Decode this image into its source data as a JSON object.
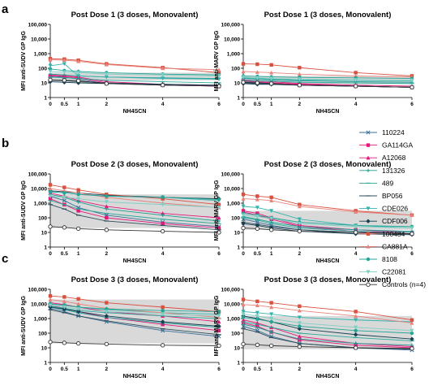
{
  "panel_labels": [
    "a",
    "b",
    "c"
  ],
  "legend": [
    {
      "name": "110224",
      "color": "#3a6f96",
      "marker": "x"
    },
    {
      "name": "GA114GA",
      "color": "#e3197a",
      "marker": "square"
    },
    {
      "name": "A12068",
      "color": "#e3197a",
      "marker": "triangle"
    },
    {
      "name": "131326",
      "color": "#1b9d93",
      "marker": "plus"
    },
    {
      "name": "489",
      "color": "#2aa89a",
      "marker": "dash"
    },
    {
      "name": "BP056",
      "color": "#2d4c5c",
      "marker": "dash"
    },
    {
      "name": "CDE026",
      "color": "#34b3ad",
      "marker": "triangle-down"
    },
    {
      "name": "CDF006",
      "color": "#163f52",
      "marker": "diamond"
    },
    {
      "name": "100484",
      "color": "#d9503f",
      "marker": "square"
    },
    {
      "name": "CA881A",
      "color": "#e8837a",
      "marker": "triangle"
    },
    {
      "name": "8108",
      "color": "#23a595",
      "marker": "circle"
    },
    {
      "name": "C22081",
      "color": "#7fcfc5",
      "marker": "triangle-down"
    },
    {
      "name": "Controls (n=4)",
      "color": "#333333",
      "marker": "open-circle"
    }
  ],
  "chart_data": [
    {
      "type": "line",
      "title": "Post Dose 1 (3 doses, Monovalent)",
      "xlabel": "NH4SCN",
      "ylabel": "MFI anti-SUDV GP IgG",
      "x": [
        0,
        0.5,
        1,
        2,
        4,
        6
      ],
      "xticks": [
        "0",
        "0.5",
        "1",
        "2",
        "4",
        "6"
      ],
      "ylim": [
        1,
        100000
      ],
      "yscale": "log",
      "yticks": [
        "1",
        "10",
        "100",
        "1,000",
        "10,000",
        "100,000"
      ],
      "shaded_band": [
        15,
        50
      ],
      "series": [
        {
          "name": "110224",
          "values": [
            28,
            25,
            18,
            9,
            7,
            6
          ]
        },
        {
          "name": "GA114GA",
          "values": [
            30,
            28,
            22,
            10,
            7,
            6
          ]
        },
        {
          "name": "A12068",
          "values": [
            35,
            30,
            25,
            12,
            8,
            6
          ]
        },
        {
          "name": "131326",
          "values": [
            40,
            35,
            30,
            25,
            22,
            20
          ]
        },
        {
          "name": "489",
          "values": [
            25,
            22,
            20,
            15,
            12,
            10
          ]
        },
        {
          "name": "BP056",
          "values": [
            15,
            14,
            12,
            10,
            8,
            7
          ]
        },
        {
          "name": "CDE026",
          "values": [
            150,
            200,
            30,
            25,
            20,
            18
          ]
        },
        {
          "name": "CDF006",
          "values": [
            12,
            11,
            10,
            9,
            8,
            7
          ]
        },
        {
          "name": "100484",
          "values": [
            450,
            420,
            350,
            200,
            110,
            50
          ]
        },
        {
          "name": "CA881A",
          "values": [
            380,
            360,
            300,
            180,
            100,
            80
          ]
        },
        {
          "name": "8108",
          "values": [
            90,
            70,
            60,
            50,
            40,
            35
          ]
        },
        {
          "name": "C22081",
          "values": [
            60,
            55,
            50,
            40,
            35,
            30
          ]
        },
        {
          "name": "Controls (n=4)",
          "values": [
            16,
            15,
            14,
            9,
            7,
            6
          ]
        }
      ]
    },
    {
      "type": "line",
      "title": "Post Dose 1 (3 doses, Monovalent)",
      "xlabel": "NH4SCN",
      "ylabel": "MFI anti-MARV GP IgG",
      "x": [
        0,
        0.5,
        1,
        2,
        4,
        6
      ],
      "xticks": [
        "0",
        "0.5",
        "1",
        "2",
        "4",
        "6"
      ],
      "ylim": [
        1,
        100000
      ],
      "yscale": "log",
      "yticks": [
        "1",
        "10",
        "100",
        "1,000",
        "10,000",
        "100,000"
      ],
      "shaded_band": [
        8,
        30
      ],
      "series": [
        {
          "name": "110224",
          "values": [
            12,
            11,
            9,
            7,
            6,
            5
          ]
        },
        {
          "name": "GA114GA",
          "values": [
            14,
            12,
            10,
            8,
            6,
            5
          ]
        },
        {
          "name": "A12068",
          "values": [
            16,
            14,
            12,
            9,
            7,
            6
          ]
        },
        {
          "name": "131326",
          "values": [
            20,
            18,
            16,
            14,
            12,
            11
          ]
        },
        {
          "name": "489",
          "values": [
            15,
            14,
            13,
            11,
            10,
            9
          ]
        },
        {
          "name": "BP056",
          "values": [
            10,
            9,
            8,
            7,
            6,
            5
          ]
        },
        {
          "name": "CDE026",
          "values": [
            22,
            20,
            18,
            16,
            15,
            14
          ]
        },
        {
          "name": "CDF006",
          "values": [
            9,
            8,
            8,
            7,
            6,
            5
          ]
        },
        {
          "name": "100484",
          "values": [
            200,
            190,
            170,
            110,
            50,
            30
          ]
        },
        {
          "name": "CA881A",
          "values": [
            60,
            55,
            50,
            40,
            30,
            25
          ]
        },
        {
          "name": "8108",
          "values": [
            30,
            28,
            26,
            24,
            22,
            20
          ]
        },
        {
          "name": "C22081",
          "values": [
            25,
            22,
            20,
            18,
            16,
            15
          ]
        },
        {
          "name": "Controls (n=4)",
          "values": [
            11,
            10,
            9,
            7,
            6,
            5
          ]
        }
      ]
    },
    {
      "type": "line",
      "title": "Post Dose 2 (3 doses, Monovalent)",
      "xlabel": "NH4SCN",
      "ylabel": "MFI anti-SUDV GP IgG",
      "x": [
        0,
        0.5,
        1,
        2,
        4,
        6
      ],
      "xticks": [
        "0",
        "0.5",
        "1",
        "2",
        "4",
        "6"
      ],
      "ylim": [
        1,
        100000
      ],
      "yscale": "log",
      "yticks": [
        "1",
        "10",
        "100",
        "1,000",
        "10,000",
        "100,000"
      ],
      "shaded_band": [
        20,
        4000
      ],
      "series": [
        {
          "name": "110224",
          "values": [
            3000,
            1500,
            500,
            150,
            50,
            25
          ]
        },
        {
          "name": "GA114GA",
          "values": [
            2000,
            800,
            300,
            100,
            40,
            20
          ]
        },
        {
          "name": "A12068",
          "values": [
            5000,
            3000,
            1500,
            600,
            200,
            100
          ]
        },
        {
          "name": "131326",
          "values": [
            4000,
            2500,
            1200,
            400,
            150,
            60
          ]
        },
        {
          "name": "489",
          "values": [
            1500,
            800,
            400,
            200,
            80,
            40
          ]
        },
        {
          "name": "BP056",
          "values": [
            800,
            400,
            150,
            60,
            30,
            15
          ]
        },
        {
          "name": "CDE026",
          "values": [
            6000,
            5000,
            4000,
            3000,
            2500,
            1500
          ]
        },
        {
          "name": "CDF006",
          "values": [
            7000,
            6000,
            5000,
            3500,
            2500,
            2000
          ]
        },
        {
          "name": "100484",
          "values": [
            18000,
            12000,
            8000,
            4000,
            2000,
            800
          ]
        },
        {
          "name": "CA881A",
          "values": [
            10000,
            7000,
            5000,
            2500,
            1000,
            500
          ]
        },
        {
          "name": "8108",
          "values": [
            6000,
            5000,
            4000,
            3000,
            2500,
            1800
          ]
        },
        {
          "name": "C22081",
          "values": [
            3000,
            2500,
            2000,
            1200,
            800,
            500
          ]
        },
        {
          "name": "Controls (n=4)",
          "values": [
            25,
            22,
            18,
            15,
            12,
            10
          ]
        }
      ]
    },
    {
      "type": "line",
      "title": "Post Dose 2 (3 doses, Monovalent)",
      "xlabel": "NH4SCN",
      "ylabel": "MFI anti-MARV GP IgG",
      "x": [
        0,
        0.5,
        1,
        2,
        4,
        6
      ],
      "xticks": [
        "0",
        "0.5",
        "1",
        "2",
        "4",
        "6"
      ],
      "ylim": [
        1,
        100000
      ],
      "yscale": "log",
      "yticks": [
        "1",
        "10",
        "100",
        "1,000",
        "10,000",
        "100,000"
      ],
      "shaded_band": [
        15,
        300
      ],
      "series": [
        {
          "name": "110224",
          "values": [
            80,
            50,
            30,
            15,
            10,
            8
          ]
        },
        {
          "name": "GA114GA",
          "values": [
            300,
            200,
            100,
            30,
            15,
            10
          ]
        },
        {
          "name": "A12068",
          "values": [
            250,
            150,
            80,
            25,
            12,
            8
          ]
        },
        {
          "name": "131326",
          "values": [
            120,
            80,
            50,
            25,
            15,
            12
          ]
        },
        {
          "name": "489",
          "values": [
            100,
            70,
            40,
            20,
            12,
            10
          ]
        },
        {
          "name": "BP056",
          "values": [
            50,
            35,
            25,
            15,
            10,
            8
          ]
        },
        {
          "name": "CDE026",
          "values": [
            600,
            500,
            300,
            80,
            30,
            20
          ]
        },
        {
          "name": "CDF006",
          "values": [
            40,
            30,
            20,
            12,
            8,
            7
          ]
        },
        {
          "name": "100484",
          "values": [
            4000,
            3000,
            2500,
            800,
            300,
            150
          ]
        },
        {
          "name": "CA881A",
          "values": [
            2000,
            1800,
            1500,
            600,
            250,
            150
          ]
        },
        {
          "name": "8108",
          "values": [
            200,
            150,
            100,
            50,
            30,
            25
          ]
        },
        {
          "name": "C22081",
          "values": [
            150,
            120,
            90,
            40,
            25,
            20
          ]
        },
        {
          "name": "Controls (n=4)",
          "values": [
            20,
            18,
            15,
            12,
            10,
            8
          ]
        }
      ]
    },
    {
      "type": "line",
      "title": "Post Dose 3 (3 doses, Monovalent)",
      "xlabel": "NH4SCN",
      "ylabel": "MFI anti-SUDV GP IgG",
      "x": [
        0,
        0.5,
        1,
        2,
        4,
        6
      ],
      "xticks": [
        "0",
        "0.5",
        "1",
        "2",
        "4",
        "6"
      ],
      "ylim": [
        1,
        100000
      ],
      "yscale": "log",
      "yticks": [
        "1",
        "10",
        "100",
        "1,000",
        "10,000",
        "100,000"
      ],
      "shaded_band": [
        20,
        20000
      ],
      "series": [
        {
          "name": "110224",
          "values": [
            5000,
            3000,
            1500,
            600,
            150,
            60
          ]
        },
        {
          "name": "GA114GA",
          "values": [
            8000,
            5000,
            3000,
            1200,
            400,
            150
          ]
        },
        {
          "name": "A12068",
          "values": [
            12000,
            9000,
            6000,
            3000,
            1500,
            600
          ]
        },
        {
          "name": "131326",
          "values": [
            6000,
            4000,
            2500,
            1200,
            500,
            250
          ]
        },
        {
          "name": "489",
          "values": [
            7000,
            5000,
            3500,
            2500,
            1500,
            1000
          ]
        },
        {
          "name": "BP056",
          "values": [
            4000,
            2500,
            1500,
            700,
            200,
            80
          ]
        },
        {
          "name": "CDE026",
          "values": [
            10000,
            8000,
            6000,
            4000,
            2500,
            2000
          ]
        },
        {
          "name": "CDF006",
          "values": [
            6000,
            4500,
            3000,
            1500,
            600,
            300
          ]
        },
        {
          "name": "100484",
          "values": [
            35000,
            30000,
            22000,
            12000,
            6000,
            3000
          ]
        },
        {
          "name": "CA881A",
          "values": [
            20000,
            15000,
            10000,
            5000,
            2500,
            1200
          ]
        },
        {
          "name": "8108",
          "values": [
            10000,
            8000,
            6000,
            4500,
            3500,
            3000
          ]
        },
        {
          "name": "C22081",
          "values": [
            8000,
            6000,
            4500,
            3000,
            2000,
            1500
          ]
        },
        {
          "name": "Controls (n=4)",
          "values": [
            25,
            22,
            20,
            18,
            15,
            14
          ]
        }
      ]
    },
    {
      "type": "line",
      "title": "Post Dose 3 (3 doses, Monovalent)",
      "xlabel": "NH4SCN",
      "ylabel": "MFI anti-MARV GP IgG",
      "x": [
        0,
        0.5,
        1,
        2,
        4,
        6
      ],
      "xticks": [
        "0",
        "0.5",
        "1",
        "2",
        "4",
        "6"
      ],
      "ylim": [
        1,
        100000
      ],
      "yscale": "log",
      "yticks": [
        "1",
        "10",
        "100",
        "1,000",
        "10,000",
        "100,000"
      ],
      "shaded_band": [
        8,
        1500
      ],
      "series": [
        {
          "name": "110224",
          "values": [
            300,
            150,
            60,
            20,
            10,
            7
          ]
        },
        {
          "name": "GA114GA",
          "values": [
            500,
            300,
            120,
            35,
            15,
            10
          ]
        },
        {
          "name": "A12068",
          "values": [
            800,
            500,
            250,
            60,
            20,
            12
          ]
        },
        {
          "name": "131326",
          "values": [
            400,
            250,
            120,
            40,
            20,
            15
          ]
        },
        {
          "name": "489",
          "values": [
            600,
            400,
            250,
            100,
            50,
            30
          ]
        },
        {
          "name": "BP056",
          "values": [
            200,
            120,
            50,
            20,
            10,
            8
          ]
        },
        {
          "name": "CDE026",
          "values": [
            3000,
            2500,
            2000,
            1200,
            800,
            600
          ]
        },
        {
          "name": "CDF006",
          "values": [
            1500,
            1000,
            600,
            200,
            80,
            40
          ]
        },
        {
          "name": "100484",
          "values": [
            20000,
            15000,
            12000,
            7000,
            3000,
            800
          ]
        },
        {
          "name": "CA881A",
          "values": [
            9000,
            8000,
            6000,
            3500,
            1500,
            500
          ]
        },
        {
          "name": "8108",
          "values": [
            1200,
            900,
            600,
            300,
            150,
            100
          ]
        },
        {
          "name": "C22081",
          "values": [
            2000,
            1500,
            1000,
            500,
            250,
            150
          ]
        },
        {
          "name": "Controls (n=4)",
          "values": [
            18,
            16,
            14,
            12,
            10,
            9
          ]
        }
      ]
    }
  ]
}
